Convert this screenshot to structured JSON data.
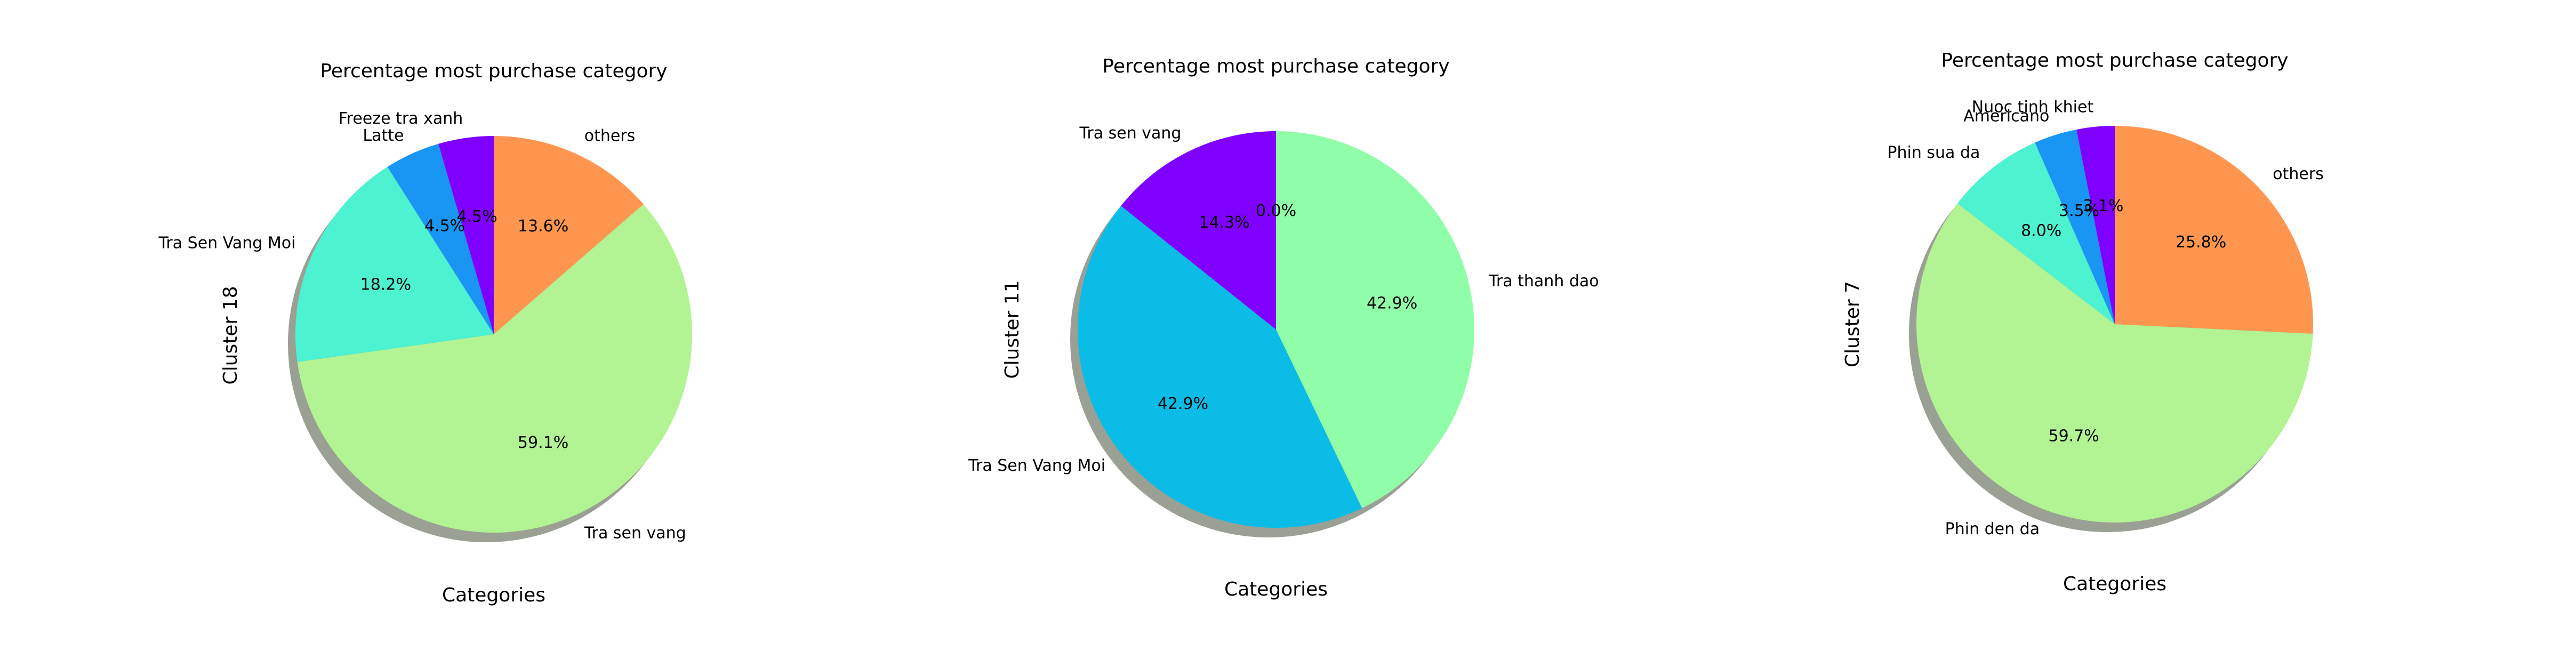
{
  "chart_data": [
    {
      "type": "pie",
      "title": "Percentage most purchase category",
      "xlabel": "Categories",
      "ylabel": "Cluster 18",
      "shadow": true,
      "slices": [
        {
          "label": "others",
          "value": 13.6,
          "pct_label": "13.6%",
          "color": "#ff9650"
        },
        {
          "label": "Tra sen vang",
          "value": 59.1,
          "pct_label": "59.1%",
          "color": "#b2f393"
        },
        {
          "label": "Tra Sen Vang Moi",
          "value": 18.2,
          "pct_label": "18.2%",
          "color": "#4df2d0"
        },
        {
          "label": "Latte",
          "value": 4.5,
          "pct_label": "4.5%",
          "color": "#1996f3"
        },
        {
          "label": "Freeze tra xanh",
          "value": 4.5,
          "pct_label": "4.5%",
          "color": "#8000ff"
        }
      ]
    },
    {
      "type": "pie",
      "title": "Percentage most purchase category",
      "xlabel": "Categories",
      "ylabel": "Cluster 11",
      "shadow": true,
      "slices": [
        {
          "label": "",
          "value": 0.0,
          "pct_label": "0.0%",
          "color": "#ff0000"
        },
        {
          "label": "Tra thanh dao",
          "value": 42.9,
          "pct_label": "42.9%",
          "color": "#90fea9"
        },
        {
          "label": "Tra Sen Vang Moi",
          "value": 42.9,
          "pct_label": "42.9%",
          "color": "#0bbde6"
        },
        {
          "label": "Tra sen vang",
          "value": 14.3,
          "pct_label": "14.3%",
          "color": "#8000ff"
        }
      ]
    },
    {
      "type": "pie",
      "title": "Percentage most purchase category",
      "xlabel": "Categories",
      "ylabel": "Cluster 7",
      "shadow": true,
      "slices": [
        {
          "label": "others",
          "value": 25.8,
          "pct_label": "25.8%",
          "color": "#ff9650"
        },
        {
          "label": "Phin den da",
          "value": 59.7,
          "pct_label": "59.7%",
          "color": "#b2f393"
        },
        {
          "label": "Phin sua da",
          "value": 8.0,
          "pct_label": "8.0%",
          "color": "#4df2d0"
        },
        {
          "label": "Americano",
          "value": 3.5,
          "pct_label": "3.5%",
          "color": "#1996f3"
        },
        {
          "label": "Nuoc tinh khiet",
          "value": 3.1,
          "pct_label": "3.1%",
          "color": "#8000ff"
        }
      ]
    }
  ]
}
